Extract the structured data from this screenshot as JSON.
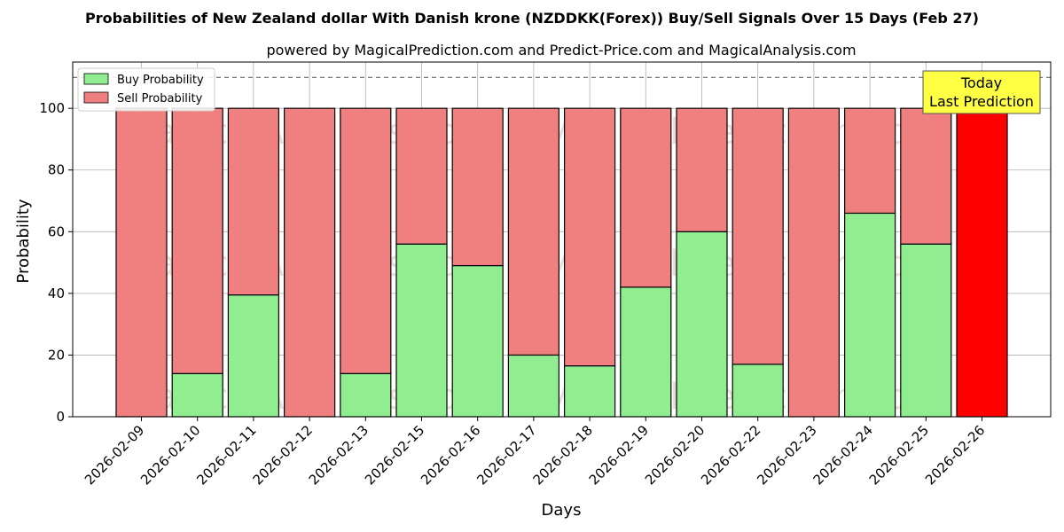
{
  "chart_data": {
    "type": "bar",
    "stacked": true,
    "title": "Probabilities of New Zealand dollar With Danish krone (NZDDKK(Forex)) Buy/Sell Signals Over 15 Days (Feb 27)",
    "subtitle": "powered by MagicalPrediction.com and Predict-Price.com and MagicalAnalysis.com",
    "xlabel": "Days",
    "ylabel": "Probability",
    "ylim": [
      0,
      115
    ],
    "yticks": [
      0,
      20,
      40,
      60,
      80,
      100
    ],
    "reference_line": 110,
    "grid": true,
    "legend_position": "top-left",
    "categories": [
      "2026-02-09",
      "2026-02-10",
      "2026-02-11",
      "2026-02-12",
      "2026-02-13",
      "2026-02-15",
      "2026-02-16",
      "2026-02-17",
      "2026-02-18",
      "2026-02-19",
      "2026-02-20",
      "2026-02-22",
      "2026-02-23",
      "2026-02-24",
      "2026-02-25",
      "2026-02-26"
    ],
    "series": [
      {
        "name": "Buy Probability",
        "color": "#90ee90",
        "values": [
          0,
          14,
          39.5,
          0,
          14,
          56,
          49,
          20,
          16.5,
          42,
          60,
          17,
          0,
          66,
          56,
          0
        ]
      },
      {
        "name": "Sell Probability",
        "color": "#f08080",
        "values": [
          100,
          86,
          60.5,
          100,
          86,
          44,
          51,
          80,
          83.5,
          58,
          40,
          83,
          100,
          34,
          44,
          100
        ]
      }
    ],
    "highlight": {
      "index": 15,
      "color": "#ff0000"
    },
    "annotation": {
      "line1": "Today",
      "line2": "Last Prediction",
      "color": "#ffff44"
    },
    "watermarks": [
      "MagicalAnalysis.com",
      "MagicalPrediction.com"
    ]
  }
}
